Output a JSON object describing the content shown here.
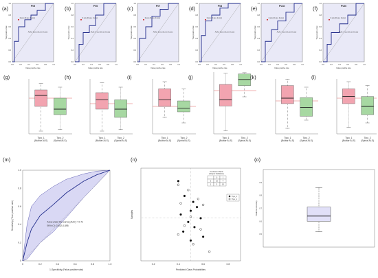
{
  "colors": {
    "roc_bg": "#e9e9f7",
    "roc_line": "#1f2a8a",
    "diag": "#9a9a9a",
    "box_red": "#f2a4b0",
    "box_green": "#a7d8a2",
    "ref_line": "#e06060",
    "band": "#c9c8ef",
    "single_box": "#e1e0f8"
  },
  "panels": {
    "a": {
      "label": "(a)",
      "title": "PV5"
    },
    "b": {
      "label": "(b)",
      "title": "PV6"
    },
    "c": {
      "label": "(c)",
      "title": "PV7"
    },
    "d": {
      "label": "(d)",
      "title": "PV8"
    },
    "e": {
      "label": "(e)",
      "title": "PV18"
    },
    "f": {
      "label": "(f)",
      "title": "PV20"
    },
    "g": {
      "label": "(g)"
    },
    "h": {
      "label": "(h)"
    },
    "i": {
      "label": "(i)"
    },
    "j": {
      "label": "(j)"
    },
    "k": {
      "label": "(k)"
    },
    "l": {
      "label": "(l)"
    },
    "m": {
      "label": "(m)"
    },
    "n": {
      "label": "(n)"
    },
    "o": {
      "label": "(o)"
    }
  },
  "chart_data": [
    {
      "type": "line",
      "panel": "a",
      "title": "PV5",
      "xlabel": "False positive rate",
      "ylabel": "True positive rate",
      "xlim": [
        0,
        1
      ],
      "ylim": [
        0,
        1
      ],
      "x": [
        0,
        0.05,
        0.05,
        0.15,
        0.15,
        0.3,
        0.3,
        0.45,
        0.45,
        0.6,
        0.6,
        0.8,
        0.8,
        1
      ],
      "y": [
        0,
        0,
        0.35,
        0.35,
        0.6,
        0.6,
        0.72,
        0.72,
        0.8,
        0.8,
        0.88,
        0.88,
        1,
        1
      ],
      "annotations": [
        "0.xxx (0.xxx, 0.xxx)",
        "AUC: 0.xxx (0.xxx-0.xxx)"
      ]
    },
    {
      "type": "line",
      "panel": "b",
      "title": "PV6",
      "xlabel": "False positive rate",
      "ylabel": "True positive rate",
      "xlim": [
        0,
        1
      ],
      "ylim": [
        0,
        1
      ],
      "x": [
        0,
        0.1,
        0.1,
        0.2,
        0.2,
        0.35,
        0.35,
        0.5,
        0.5,
        0.7,
        0.7,
        1
      ],
      "y": [
        0,
        0,
        0.3,
        0.3,
        0.5,
        0.5,
        0.62,
        0.62,
        0.8,
        0.8,
        1,
        1
      ],
      "annotations": [
        "0.xxx (0.xxx, 0.xxx)",
        "AUC: 0.xxx (0.xxx-0.xxx)"
      ]
    },
    {
      "type": "line",
      "panel": "c",
      "title": "PV7",
      "xlabel": "False positive rate",
      "ylabel": "True positive rate",
      "xlim": [
        0,
        1
      ],
      "ylim": [
        0,
        1
      ],
      "x": [
        0,
        0.05,
        0.05,
        0.2,
        0.2,
        0.35,
        0.35,
        0.55,
        0.55,
        0.75,
        0.75,
        1
      ],
      "y": [
        0,
        0,
        0.4,
        0.4,
        0.6,
        0.6,
        0.78,
        0.78,
        0.9,
        0.9,
        1,
        1
      ],
      "annotations": [
        "0.xxx (0.xxx, 0.xxx)",
        "AUC: 0.xxx (0.xxx-0.xxx)"
      ]
    },
    {
      "type": "line",
      "panel": "d",
      "title": "PV8",
      "xlabel": "False positive rate",
      "ylabel": "True positive rate",
      "xlim": [
        0,
        1
      ],
      "ylim": [
        0,
        1
      ],
      "x": [
        0,
        0.05,
        0.05,
        0.15,
        0.15,
        0.3,
        0.3,
        0.5,
        0.5,
        0.7,
        0.7,
        1
      ],
      "y": [
        0,
        0,
        0.45,
        0.45,
        0.7,
        0.7,
        0.8,
        0.8,
        0.92,
        0.92,
        1,
        1
      ],
      "annotations": [
        "0.xxx (0.xxx, 0.xxx)",
        "AUC: 0.xxx (0.xxx-0.xxx)"
      ]
    },
    {
      "type": "line",
      "panel": "e",
      "title": "PV18",
      "xlabel": "False positive rate",
      "ylabel": "True positive rate",
      "xlim": [
        0,
        1
      ],
      "ylim": [
        0,
        1
      ],
      "x": [
        0,
        0.1,
        0.1,
        0.25,
        0.25,
        0.4,
        0.4,
        0.6,
        0.6,
        0.8,
        0.8,
        1
      ],
      "y": [
        0,
        0,
        0.35,
        0.35,
        0.55,
        0.55,
        0.7,
        0.7,
        0.85,
        0.85,
        1,
        1
      ],
      "annotations": [
        "0.xxx (0.xxx, 0.xxx)",
        "AUC: 0.xxx (0.xxx-0.xxx)"
      ]
    },
    {
      "type": "line",
      "panel": "f",
      "title": "PV20",
      "xlabel": "False positive rate",
      "ylabel": "True positive rate",
      "xlim": [
        0,
        1
      ],
      "ylim": [
        0,
        1
      ],
      "x": [
        0,
        0.1,
        0.1,
        0.2,
        0.2,
        0.4,
        0.4,
        0.6,
        0.6,
        0.8,
        0.8,
        1
      ],
      "y": [
        0,
        0,
        0.3,
        0.3,
        0.5,
        0.5,
        0.65,
        0.65,
        0.8,
        0.8,
        1,
        1
      ],
      "annotations": [
        "0.xxx (0.xxx, 0.xxx)",
        "AUC: 0.xxx (0.xxx-0.xxx)"
      ]
    },
    {
      "type": "box",
      "panel": "g",
      "categories": [
        "Tipo_1 (Bulbar ALS)",
        "Tipo_2 (Spinal ALS)"
      ],
      "ylim": [
        0,
        1
      ],
      "boxes": [
        {
          "low": 0.05,
          "q1": 0.5,
          "median": 0.7,
          "q3": 0.8,
          "high": 0.92
        },
        {
          "low": 0.08,
          "q1": 0.35,
          "median": 0.45,
          "q3": 0.65,
          "high": 0.85
        }
      ],
      "ref": 0.65
    },
    {
      "type": "box",
      "panel": "h",
      "categories": [
        "Tipo_1 (Bulbar ALS)",
        "Tipo_2 (Spinal ALS)"
      ],
      "ylim": [
        0,
        1
      ],
      "boxes": [
        {
          "low": 0.05,
          "q1": 0.45,
          "median": 0.62,
          "q3": 0.75,
          "high": 0.93
        },
        {
          "low": 0.08,
          "q1": 0.3,
          "median": 0.45,
          "q3": 0.62,
          "high": 0.85
        }
      ],
      "ref": 0.55
    },
    {
      "type": "box",
      "panel": "i",
      "categories": [
        "Tipo_1 (Bulbar ALS)",
        "Tipo_2 (Spinal ALS)"
      ],
      "ylim": [
        0,
        1
      ],
      "boxes": [
        {
          "low": 0.3,
          "q1": 0.5,
          "median": 0.62,
          "q3": 0.82,
          "high": 0.95
        },
        {
          "low": 0.2,
          "q1": 0.4,
          "median": 0.47,
          "q3": 0.6,
          "high": 0.82
        }
      ],
      "ref": 0.5
    },
    {
      "type": "box",
      "panel": "j",
      "categories": [
        "Tipo_1 (Bulbar ALS)",
        "Tipo_2 (Spinal ALS)"
      ],
      "ylim": [
        0,
        1
      ],
      "boxes": [
        {
          "low": 0.05,
          "q1": 0.45,
          "median": 0.55,
          "q3": 0.8,
          "high": 0.98
        },
        {
          "low": 0.6,
          "q1": 0.78,
          "median": 0.88,
          "q3": 0.97,
          "high": 0.99
        }
      ],
      "ref": 0.7
    },
    {
      "type": "box",
      "panel": "k",
      "categories": [
        "Tipo_1 (Bulbar ALS)",
        "Tipo_2 (Spinal ALS)"
      ],
      "ylim": [
        0,
        1
      ],
      "boxes": [
        {
          "low": 0.1,
          "q1": 0.55,
          "median": 0.65,
          "q3": 0.88,
          "high": 0.99
        },
        {
          "low": 0.25,
          "q1": 0.32,
          "median": 0.48,
          "q3": 0.66,
          "high": 0.85
        }
      ],
      "ref": 0.6
    },
    {
      "type": "box",
      "panel": "l",
      "categories": [
        "Tipo_1 (Bulbar ALS)",
        "Tipo_2 (Spinal ALS)"
      ],
      "ylim": [
        0,
        1
      ],
      "boxes": [
        {
          "low": 0.12,
          "q1": 0.55,
          "median": 0.68,
          "q3": 0.82,
          "high": 0.95
        },
        {
          "low": 0.2,
          "q1": 0.35,
          "median": 0.5,
          "q3": 0.68,
          "high": 0.88
        }
      ],
      "ref": 0.65
    },
    {
      "type": "line",
      "panel": "m",
      "xlabel": "1-Specificity (False positive rate)",
      "ylabel": "Sensitivity (True positive rate)",
      "xlim": [
        0,
        1
      ],
      "ylim": [
        0,
        1
      ],
      "ticks": [
        "0",
        "0.2",
        "0.4",
        "0.6",
        "0.8",
        "1.0"
      ],
      "x": [
        0,
        0.05,
        0.1,
        0.2,
        0.35,
        0.5,
        0.7,
        0.85,
        1
      ],
      "y": [
        0,
        0.2,
        0.35,
        0.5,
        0.62,
        0.75,
        0.88,
        0.95,
        1
      ],
      "band_upper": [
        0,
        0.4,
        0.6,
        0.72,
        0.82,
        0.9,
        0.96,
        0.99,
        1
      ],
      "band_lower": [
        0,
        0.02,
        0.08,
        0.2,
        0.32,
        0.48,
        0.7,
        0.85,
        1
      ],
      "annotations": [
        "Area under the curve (AUC) = 0.71",
        "95% CI: 0.452-0.895"
      ]
    },
    {
      "type": "scatter",
      "panel": "n",
      "xlabel": "Predicted Class Probabilities",
      "ylabel": "Samples",
      "xlim": [
        0.1,
        0.9
      ],
      "x_ticks": [
        "0.2",
        "0.4",
        "0.6",
        "0.8"
      ],
      "series": [
        {
          "name": "Tipo_2",
          "marker": "filled",
          "points": [
            [
              0.4,
              0.9
            ],
            [
              0.45,
              0.7
            ],
            [
              0.52,
              0.62
            ],
            [
              0.55,
              0.55
            ],
            [
              0.5,
              0.5
            ],
            [
              0.42,
              0.45
            ],
            [
              0.58,
              0.4
            ],
            [
              0.48,
              0.35
            ],
            [
              0.53,
              0.28
            ],
            [
              0.44,
              0.22
            ],
            [
              0.6,
              0.15
            ],
            [
              0.5,
              0.1
            ]
          ]
        },
        {
          "name": "Tipo_1",
          "marker": "open",
          "points": [
            [
              0.4,
              0.85
            ],
            [
              0.48,
              0.78
            ],
            [
              0.56,
              0.66
            ],
            [
              0.42,
              0.6
            ],
            [
              0.6,
              0.58
            ],
            [
              0.5,
              0.42
            ],
            [
              0.45,
              0.3
            ],
            [
              0.58,
              0.25
            ],
            [
              0.4,
              0.18
            ],
            [
              0.52,
              0.05
            ],
            [
              0.65,
              -0.05
            ]
          ]
        }
      ],
      "matrix": {
        "title": "Confusion Matrix",
        "subtitle": "(Simple Validation)",
        "rows": [
          [
            "",
            "0",
            "1"
          ],
          [
            "0",
            "10",
            "4"
          ],
          [
            "1",
            "5",
            "10"
          ]
        ]
      }
    },
    {
      "type": "box",
      "panel": "o",
      "ylabel": "Predictive Accuracy",
      "ylim": [
        0.4,
        1.0
      ],
      "boxes": [
        {
          "low": 0.52,
          "q1": 0.6,
          "median": 0.64,
          "q3": 0.71,
          "high": 0.86
        }
      ]
    }
  ]
}
